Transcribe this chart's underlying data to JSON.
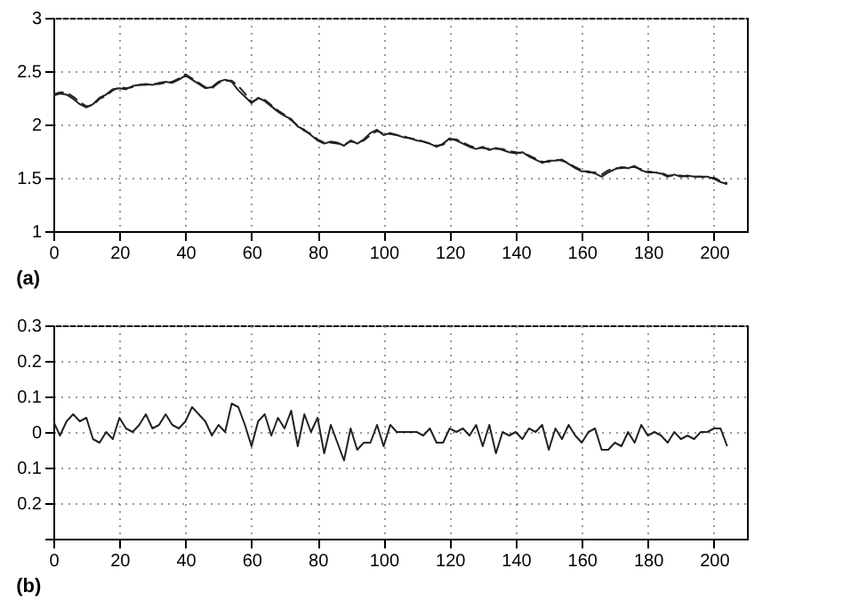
{
  "chart_data": [
    {
      "type": "line",
      "title": "(a)",
      "x": [
        0,
        2,
        4,
        6,
        8,
        10,
        12,
        14,
        16,
        18,
        20,
        22,
        24,
        26,
        28,
        30,
        32,
        34,
        36,
        38,
        40,
        42,
        44,
        46,
        48,
        50,
        52,
        54,
        56,
        58,
        60,
        62,
        64,
        66,
        68,
        70,
        72,
        74,
        76,
        78,
        80,
        82,
        84,
        86,
        88,
        90,
        92,
        94,
        96,
        98,
        100,
        102,
        104,
        106,
        108,
        110,
        112,
        114,
        116,
        118,
        120,
        122,
        124,
        126,
        128,
        130,
        132,
        134,
        136,
        138,
        140,
        142,
        144,
        146,
        148,
        150,
        152,
        154,
        156,
        158,
        160,
        162,
        164,
        166,
        168,
        170,
        172,
        174,
        176,
        178,
        180,
        182,
        184,
        186,
        188,
        190,
        192,
        194,
        196,
        198,
        200,
        202,
        204
      ],
      "series": [
        {
          "color": "#222222",
          "line_style": "solid",
          "values": [
            2.27,
            2.29,
            2.28,
            2.24,
            2.19,
            2.16,
            2.19,
            2.25,
            2.28,
            2.33,
            2.34,
            2.33,
            2.36,
            2.37,
            2.38,
            2.37,
            2.39,
            2.4,
            2.39,
            2.42,
            2.46,
            2.42,
            2.38,
            2.34,
            2.35,
            2.4,
            2.42,
            2.4,
            2.32,
            2.26,
            2.2,
            2.25,
            2.22,
            2.17,
            2.12,
            2.08,
            2.05,
            1.98,
            1.95,
            1.9,
            1.85,
            1.82,
            1.84,
            1.83,
            1.8,
            1.85,
            1.82,
            1.86,
            1.92,
            1.95,
            1.9,
            1.92,
            1.9,
            1.88,
            1.87,
            1.85,
            1.84,
            1.82,
            1.79,
            1.82,
            1.87,
            1.85,
            1.82,
            1.79,
            1.77,
            1.79,
            1.76,
            1.78,
            1.76,
            1.74,
            1.73,
            1.74,
            1.7,
            1.67,
            1.64,
            1.66,
            1.66,
            1.67,
            1.63,
            1.59,
            1.56,
            1.56,
            1.54,
            1.51,
            1.55,
            1.58,
            1.6,
            1.59,
            1.61,
            1.57,
            1.55,
            1.55,
            1.54,
            1.51,
            1.53,
            1.51,
            1.52,
            1.51,
            1.51,
            1.51,
            1.49,
            1.46,
            1.44
          ]
        },
        {
          "color": "#222222",
          "line_style": "dashed",
          "values": [
            2.28,
            2.3,
            2.3,
            2.26,
            2.21,
            2.17,
            2.18,
            2.24,
            2.27,
            2.32,
            2.35,
            2.34,
            2.35,
            2.37,
            2.37,
            2.38,
            2.38,
            2.39,
            2.4,
            2.43,
            2.47,
            2.43,
            2.39,
            2.35,
            2.34,
            2.39,
            2.41,
            2.41,
            2.36,
            2.29,
            2.21,
            2.24,
            2.23,
            2.18,
            2.13,
            2.09,
            2.04,
            1.99,
            1.94,
            1.91,
            1.86,
            1.83,
            1.83,
            1.82,
            1.81,
            1.84,
            1.83,
            1.85,
            1.9,
            1.94,
            1.91,
            1.91,
            1.9,
            1.89,
            1.87,
            1.86,
            1.84,
            1.82,
            1.8,
            1.81,
            1.86,
            1.86,
            1.83,
            1.8,
            1.78,
            1.78,
            1.77,
            1.77,
            1.77,
            1.75,
            1.74,
            1.73,
            1.71,
            1.68,
            1.65,
            1.65,
            1.67,
            1.66,
            1.64,
            1.6,
            1.57,
            1.55,
            1.55,
            1.53,
            1.57,
            1.59,
            1.59,
            1.6,
            1.6,
            1.58,
            1.56,
            1.55,
            1.55,
            1.52,
            1.52,
            1.52,
            1.51,
            1.51,
            1.51,
            1.5,
            1.5,
            1.47,
            1.45
          ]
        }
      ],
      "xlim": [
        0,
        210
      ],
      "xticks": [
        0,
        20,
        40,
        60,
        80,
        100,
        120,
        140,
        160,
        180,
        200
      ],
      "ylim": [
        1,
        3
      ],
      "yticks": [
        1,
        1.5,
        2,
        2.5,
        3
      ],
      "grid": true
    },
    {
      "type": "line",
      "title": "(b)",
      "x": [
        0,
        2,
        4,
        6,
        8,
        10,
        12,
        14,
        16,
        18,
        20,
        22,
        24,
        26,
        28,
        30,
        32,
        34,
        36,
        38,
        40,
        42,
        44,
        46,
        48,
        50,
        52,
        54,
        56,
        58,
        60,
        62,
        64,
        66,
        68,
        70,
        72,
        74,
        76,
        78,
        80,
        82,
        84,
        86,
        88,
        90,
        92,
        94,
        96,
        98,
        100,
        102,
        104,
        106,
        108,
        110,
        112,
        114,
        116,
        118,
        120,
        122,
        124,
        126,
        128,
        130,
        132,
        134,
        136,
        138,
        140,
        142,
        144,
        146,
        148,
        150,
        152,
        154,
        156,
        158,
        160,
        162,
        164,
        166,
        168,
        170,
        172,
        174,
        176,
        178,
        180,
        182,
        184,
        186,
        188,
        190,
        192,
        194,
        196,
        198,
        200,
        202,
        204
      ],
      "series": [
        {
          "color": "#222222",
          "line_style": "solid",
          "values": [
            0.03,
            -0.01,
            0.03,
            0.05,
            0.03,
            0.04,
            -0.02,
            -0.03,
            0.0,
            -0.02,
            0.04,
            0.01,
            0.0,
            0.02,
            0.05,
            0.01,
            0.02,
            0.05,
            0.02,
            0.01,
            0.03,
            0.07,
            0.05,
            0.03,
            -0.01,
            0.02,
            0.0,
            0.08,
            0.07,
            0.02,
            -0.04,
            0.03,
            0.05,
            -0.01,
            0.04,
            0.01,
            0.06,
            -0.04,
            0.05,
            0.0,
            0.04,
            -0.06,
            0.02,
            -0.03,
            -0.08,
            0.01,
            -0.05,
            -0.03,
            -0.03,
            0.02,
            -0.04,
            0.02,
            0.0,
            0.0,
            0.0,
            0.0,
            -0.01,
            0.01,
            -0.03,
            -0.03,
            0.01,
            0.0,
            0.01,
            -0.01,
            0.02,
            -0.04,
            0.02,
            -0.06,
            0.0,
            -0.01,
            0.0,
            -0.02,
            0.01,
            0.0,
            0.02,
            -0.05,
            0.01,
            -0.02,
            0.02,
            -0.01,
            -0.03,
            0.0,
            0.01,
            -0.05,
            -0.05,
            -0.03,
            -0.04,
            0.0,
            -0.03,
            0.02,
            -0.01,
            0.0,
            -0.01,
            -0.03,
            0.0,
            -0.02,
            -0.01,
            -0.02,
            0.0,
            0.0,
            0.01,
            0.01,
            -0.04
          ]
        }
      ],
      "xlim": [
        0,
        210
      ],
      "xticks": [
        0,
        20,
        40,
        60,
        80,
        100,
        120,
        140,
        160,
        180,
        200
      ],
      "ylim": [
        -0.3,
        0.3
      ],
      "yticks": [
        {
          "value": -0.3,
          "label": null
        },
        {
          "value": -0.2,
          "label": "0.2"
        },
        {
          "value": -0.1,
          "label": "0.1"
        },
        0,
        0.1,
        0.2,
        0.3
      ],
      "grid": true
    }
  ]
}
